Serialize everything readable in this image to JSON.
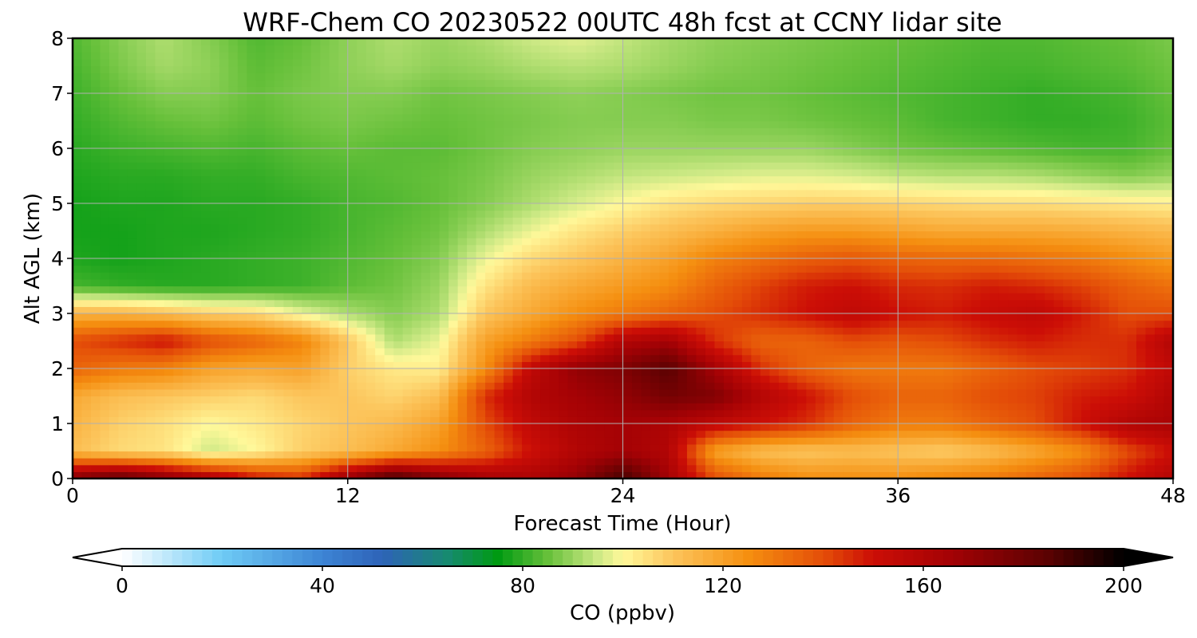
{
  "chart_data": {
    "type": "heatmap",
    "title": "WRF-Chem CO  20230522 00UTC 48h fcst at CCNY lidar site",
    "xlabel": "Forecast Time (Hour)",
    "ylabel": "Alt AGL (km)",
    "xlim": [
      0,
      48
    ],
    "ylim": [
      0,
      8
    ],
    "x_ticks": [
      0,
      12,
      24,
      36,
      48
    ],
    "y_ticks": [
      0,
      1,
      2,
      3,
      4,
      5,
      6,
      7,
      8
    ],
    "grid": true,
    "x": [
      0,
      2,
      4,
      6,
      8,
      10,
      12,
      14,
      16,
      18,
      20,
      22,
      24,
      26,
      28,
      30,
      32,
      34,
      36,
      38,
      40,
      42,
      44,
      46,
      48
    ],
    "y": [
      0,
      0.5,
      1,
      1.5,
      2,
      2.5,
      3,
      3.5,
      4,
      4.5,
      5,
      5.5,
      6,
      6.5,
      7,
      7.5,
      8
    ],
    "values_ppbv": [
      [
        175,
        185,
        175,
        165,
        150,
        145,
        170,
        190,
        175,
        165,
        162,
        170,
        190,
        165,
        140,
        130,
        125,
        125,
        125,
        128,
        130,
        135,
        140,
        150,
        160
      ],
      [
        112,
        106,
        104,
        95,
        100,
        108,
        112,
        118,
        125,
        135,
        150,
        160,
        165,
        160,
        120,
        112,
        110,
        112,
        110,
        108,
        112,
        118,
        125,
        140,
        150
      ],
      [
        115,
        108,
        105,
        100,
        103,
        107,
        110,
        113,
        120,
        140,
        155,
        162,
        165,
        162,
        155,
        150,
        145,
        135,
        130,
        130,
        135,
        140,
        150,
        160,
        163
      ],
      [
        118,
        112,
        110,
        108,
        106,
        110,
        110,
        107,
        112,
        145,
        160,
        165,
        170,
        178,
        175,
        160,
        150,
        140,
        135,
        135,
        140,
        142,
        148,
        150,
        160
      ],
      [
        135,
        130,
        128,
        120,
        118,
        120,
        108,
        103,
        102,
        125,
        155,
        170,
        175,
        185,
        165,
        145,
        135,
        130,
        130,
        130,
        135,
        140,
        142,
        145,
        155
      ],
      [
        140,
        145,
        150,
        140,
        135,
        128,
        110,
        92,
        98,
        120,
        130,
        140,
        160,
        165,
        145,
        135,
        135,
        140,
        138,
        140,
        145,
        148,
        145,
        145,
        160
      ],
      [
        115,
        115,
        112,
        108,
        106,
        98,
        92,
        88,
        92,
        110,
        118,
        125,
        130,
        135,
        140,
        145,
        150,
        155,
        150,
        148,
        152,
        155,
        148,
        140,
        140
      ],
      [
        82,
        80,
        79,
        79,
        80,
        81,
        84,
        86,
        90,
        104,
        113,
        118,
        122,
        126,
        135,
        142,
        148,
        150,
        146,
        145,
        148,
        146,
        142,
        136,
        132
      ],
      [
        78,
        77,
        78,
        79,
        80,
        81,
        83,
        85,
        88,
        98,
        106,
        110,
        115,
        120,
        128,
        132,
        136,
        138,
        135,
        134,
        134,
        132,
        130,
        126,
        122
      ],
      [
        77,
        77,
        78,
        78,
        79,
        80,
        82,
        84,
        86,
        92,
        98,
        104,
        108,
        112,
        116,
        120,
        122,
        122,
        120,
        118,
        118,
        118,
        117,
        115,
        113
      ],
      [
        77,
        78,
        78,
        79,
        79,
        80,
        82,
        83,
        85,
        88,
        92,
        96,
        100,
        104,
        106,
        107,
        108,
        108,
        107,
        106,
        105,
        105,
        104,
        103,
        102
      ],
      [
        78,
        79,
        79,
        80,
        80,
        82,
        83,
        84,
        85,
        87,
        90,
        92,
        94,
        95,
        96,
        97,
        97,
        96,
        94,
        93,
        93,
        92,
        90,
        88,
        90
      ],
      [
        79,
        81,
        82,
        83,
        82,
        84,
        85,
        84,
        84,
        86,
        88,
        89,
        90,
        90,
        90,
        90,
        90,
        88,
        86,
        85,
        84,
        83,
        82,
        82,
        85
      ],
      [
        80,
        83,
        85,
        86,
        84,
        86,
        87,
        86,
        85,
        86,
        87,
        88,
        88,
        88,
        87,
        87,
        86,
        85,
        84,
        82,
        81,
        80,
        80,
        81,
        84
      ],
      [
        81,
        85,
        88,
        88,
        85,
        87,
        88,
        88,
        86,
        87,
        88,
        89,
        88,
        87,
        86,
        86,
        85,
        84,
        83,
        82,
        81,
        80,
        81,
        82,
        85
      ],
      [
        82,
        87,
        91,
        89,
        84,
        86,
        89,
        91,
        89,
        90,
        92,
        93,
        92,
        90,
        88,
        87,
        86,
        85,
        84,
        83,
        82,
        82,
        83,
        84,
        86
      ],
      [
        83,
        88,
        92,
        88,
        83,
        85,
        89,
        92,
        90,
        92,
        95,
        97,
        94,
        91,
        89,
        88,
        87,
        86,
        85,
        84,
        83,
        83,
        84,
        85,
        87
      ]
    ],
    "colorbar": {
      "label": "CO  (ppbv)",
      "ticks": [
        0,
        40,
        80,
        120,
        160,
        200
      ],
      "range": [
        0,
        200
      ],
      "extend": "both",
      "colors": [
        {
          "v": 0,
          "c": "#ffffff"
        },
        {
          "v": 20,
          "c": "#6ecbf5"
        },
        {
          "v": 40,
          "c": "#3d84d4"
        },
        {
          "v": 52,
          "c": "#2e63b8"
        },
        {
          "v": 65,
          "c": "#178a70"
        },
        {
          "v": 75,
          "c": "#009a12"
        },
        {
          "v": 85,
          "c": "#66c03a"
        },
        {
          "v": 95,
          "c": "#cde985"
        },
        {
          "v": 100,
          "c": "#fff89a"
        },
        {
          "v": 110,
          "c": "#fcc55c"
        },
        {
          "v": 125,
          "c": "#f58f10"
        },
        {
          "v": 140,
          "c": "#e44e08"
        },
        {
          "v": 150,
          "c": "#cc0e06"
        },
        {
          "v": 165,
          "c": "#a50205"
        },
        {
          "v": 185,
          "c": "#5a0202"
        },
        {
          "v": 200,
          "c": "#000000"
        }
      ]
    }
  }
}
